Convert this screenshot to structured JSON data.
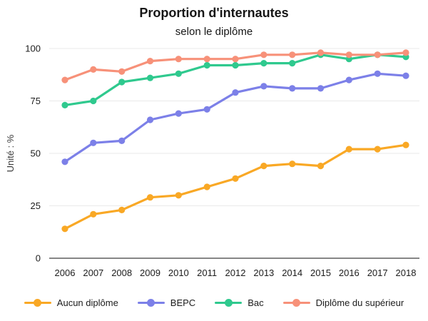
{
  "chart_data": {
    "type": "line",
    "title": "Proportion d'internautes",
    "subtitle": "selon le diplôme",
    "ylabel": "Unité : %",
    "xlabel": "",
    "categories": [
      "2006",
      "2007",
      "2008",
      "2009",
      "2010",
      "2011",
      "2012",
      "2013",
      "2014",
      "2015",
      "2016",
      "2017",
      "2018"
    ],
    "yticks": [
      0,
      25,
      50,
      75,
      100
    ],
    "ylim": [
      0,
      100
    ],
    "grid": "horizontal",
    "legend_position": "bottom",
    "series": [
      {
        "name": "Aucun diplôme",
        "color": "#F9A825",
        "values": [
          14,
          21,
          23,
          29,
          30,
          34,
          38,
          44,
          45,
          44,
          52,
          52,
          54
        ]
      },
      {
        "name": "BEPC",
        "color": "#7C80E8",
        "values": [
          46,
          55,
          56,
          66,
          69,
          71,
          79,
          82,
          81,
          81,
          85,
          88,
          87
        ]
      },
      {
        "name": "Bac",
        "color": "#2FC98E",
        "values": [
          73,
          75,
          84,
          86,
          88,
          92,
          92,
          93,
          93,
          97,
          95,
          97,
          96
        ]
      },
      {
        "name": "Diplôme du supérieur",
        "color": "#F79179",
        "values": [
          85,
          90,
          89,
          94,
          95,
          95,
          95,
          97,
          97,
          98,
          97,
          97,
          98
        ]
      }
    ],
    "style": {
      "grid_color": "#E9E9E9",
      "axis_color": "#3E3E3E",
      "tick_text_color": "#1c1c1c",
      "ylabel_color": "#3a3a3a",
      "background": "#ffffff"
    }
  }
}
